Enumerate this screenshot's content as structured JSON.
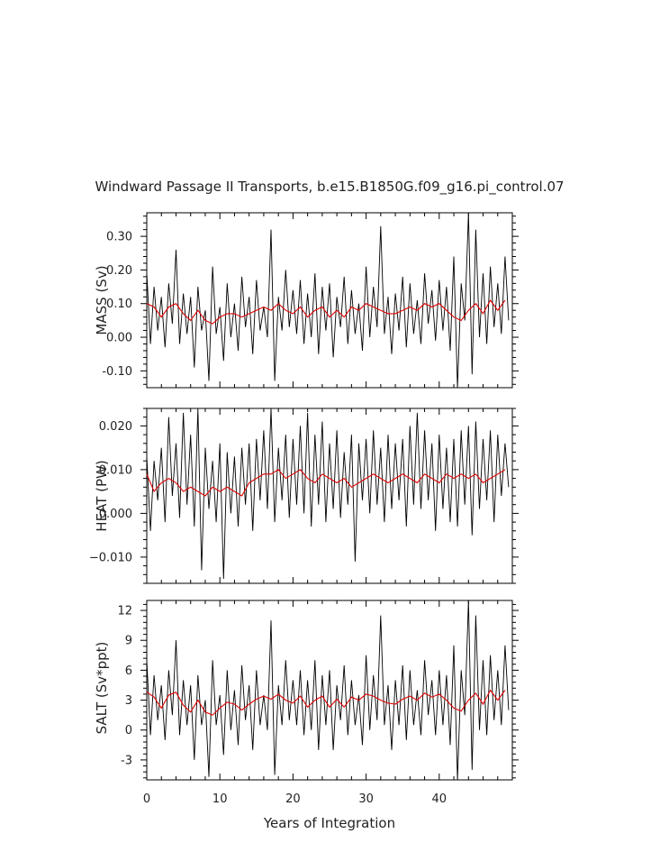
{
  "chart_data": {
    "type": "line",
    "title": "Windward Passage II Transports, b.e15.B1850G.f09_g16.pi_control.07",
    "xlabel": "Years of Integration",
    "xlim": [
      0,
      50
    ],
    "x_ticks": [
      "0",
      "10",
      "20",
      "30",
      "40"
    ],
    "colors": {
      "raw": "#000000",
      "smoothed": "#e00000"
    },
    "panels": [
      {
        "ylabel": "MASS (Sv)",
        "ylim": [
          -0.15,
          0.37
        ],
        "y_ticks": [
          "0.30",
          "0.20",
          "0.10",
          "0.00",
          "-0.10"
        ],
        "y_tick_values": [
          0.3,
          0.2,
          0.1,
          0.0,
          -0.1
        ],
        "raw_series": {
          "years": [
            0,
            0.5,
            1,
            1.5,
            2,
            2.5,
            3,
            3.5,
            4,
            4.5,
            5,
            5.5,
            6,
            6.5,
            7,
            7.5,
            8,
            8.5,
            9,
            9.5,
            10,
            10.5,
            11,
            11.5,
            12,
            12.5,
            13,
            13.5,
            14,
            14.5,
            15,
            15.5,
            16,
            16.5,
            17,
            17.5,
            18,
            18.5,
            19,
            19.5,
            20,
            20.5,
            21,
            21.5,
            22,
            22.5,
            23,
            23.5,
            24,
            24.5,
            25,
            25.5,
            26,
            26.5,
            27,
            27.5,
            28,
            28.5,
            29,
            29.5,
            30,
            30.5,
            31,
            31.5,
            32,
            32.5,
            33,
            33.5,
            34,
            34.5,
            35,
            35.5,
            36,
            36.5,
            37,
            37.5,
            38,
            38.5,
            39,
            39.5,
            40,
            40.5,
            41,
            41.5,
            42,
            42.5,
            43,
            43.5,
            44,
            44.5,
            45,
            45.5,
            46,
            46.5,
            47,
            47.5,
            48,
            48.5,
            49,
            49.5
          ],
          "values": [
            0.19,
            -0.02,
            0.15,
            0.02,
            0.12,
            -0.03,
            0.16,
            0.04,
            0.26,
            -0.02,
            0.13,
            0.01,
            0.12,
            -0.09,
            0.15,
            0.02,
            0.08,
            -0.13,
            0.21,
            0.01,
            0.09,
            -0.07,
            0.16,
            0.0,
            0.1,
            -0.04,
            0.18,
            0.03,
            0.12,
            -0.05,
            0.17,
            0.02,
            0.09,
            0.0,
            0.32,
            -0.13,
            0.12,
            0.02,
            0.2,
            0.03,
            0.14,
            0.01,
            0.17,
            -0.02,
            0.13,
            0.0,
            0.19,
            -0.05,
            0.15,
            0.02,
            0.16,
            -0.06,
            0.12,
            0.03,
            0.18,
            -0.02,
            0.14,
            0.01,
            0.1,
            -0.04,
            0.21,
            0.0,
            0.15,
            0.03,
            0.33,
            0.01,
            0.12,
            -0.05,
            0.13,
            0.02,
            0.18,
            -0.03,
            0.16,
            0.01,
            0.11,
            -0.02,
            0.19,
            0.04,
            0.14,
            -0.01,
            0.17,
            0.02,
            0.15,
            -0.04,
            0.24,
            -0.15,
            0.16,
            0.05,
            0.37,
            -0.11,
            0.32,
            0.0,
            0.19,
            -0.02,
            0.21,
            0.03,
            0.16,
            0.01,
            0.24,
            0.05
          ]
        },
        "smoothed_series": {
          "years": [
            0,
            1,
            2,
            3,
            4,
            5,
            6,
            7,
            8,
            9,
            10,
            11,
            12,
            13,
            14,
            15,
            16,
            17,
            18,
            19,
            20,
            21,
            22,
            23,
            24,
            25,
            26,
            27,
            28,
            29,
            30,
            31,
            32,
            33,
            34,
            35,
            36,
            37,
            38,
            39,
            40,
            41,
            42,
            43,
            44,
            45,
            46,
            47,
            48,
            49
          ],
          "values": [
            0.1,
            0.09,
            0.06,
            0.09,
            0.1,
            0.07,
            0.05,
            0.08,
            0.05,
            0.04,
            0.06,
            0.07,
            0.07,
            0.06,
            0.07,
            0.08,
            0.09,
            0.08,
            0.1,
            0.08,
            0.07,
            0.09,
            0.06,
            0.08,
            0.09,
            0.06,
            0.08,
            0.06,
            0.09,
            0.08,
            0.1,
            0.09,
            0.08,
            0.07,
            0.07,
            0.08,
            0.09,
            0.08,
            0.1,
            0.09,
            0.1,
            0.08,
            0.06,
            0.05,
            0.08,
            0.1,
            0.07,
            0.11,
            0.08,
            0.11
          ]
        }
      },
      {
        "ylabel": "HEAT (PW)",
        "ylim": [
          -0.016,
          0.024
        ],
        "y_ticks": [
          "0.020",
          "0.010",
          "0.000",
          "−0.010"
        ],
        "y_tick_values": [
          0.02,
          0.01,
          0.0,
          -0.01
        ],
        "raw_series": {
          "years": [
            0,
            0.5,
            1,
            1.5,
            2,
            2.5,
            3,
            3.5,
            4,
            4.5,
            5,
            5.5,
            6,
            6.5,
            7,
            7.5,
            8,
            8.5,
            9,
            9.5,
            10,
            10.5,
            11,
            11.5,
            12,
            12.5,
            13,
            13.5,
            14,
            14.5,
            15,
            15.5,
            16,
            16.5,
            17,
            17.5,
            18,
            18.5,
            19,
            19.5,
            20,
            20.5,
            21,
            21.5,
            22,
            22.5,
            23,
            23.5,
            24,
            24.5,
            25,
            25.5,
            26,
            26.5,
            27,
            27.5,
            28,
            28.5,
            29,
            29.5,
            30,
            30.5,
            31,
            31.5,
            32,
            32.5,
            33,
            33.5,
            34,
            34.5,
            35,
            35.5,
            36,
            36.5,
            37,
            37.5,
            38,
            38.5,
            39,
            39.5,
            40,
            40.5,
            41,
            41.5,
            42,
            42.5,
            43,
            43.5,
            44,
            44.5,
            45,
            45.5,
            46,
            46.5,
            47,
            47.5,
            48,
            48.5,
            49,
            49.5
          ],
          "values": [
            0.013,
            -0.004,
            0.012,
            0.003,
            0.015,
            -0.002,
            0.022,
            0.004,
            0.016,
            -0.001,
            0.023,
            0.002,
            0.018,
            -0.003,
            0.024,
            -0.013,
            0.015,
            0.001,
            0.012,
            -0.002,
            0.016,
            -0.015,
            0.014,
            0.0,
            0.013,
            -0.003,
            0.015,
            0.002,
            0.016,
            -0.004,
            0.017,
            0.003,
            0.019,
            0.001,
            0.024,
            -0.002,
            0.015,
            0.003,
            0.018,
            -0.001,
            0.017,
            0.002,
            0.02,
            0.0,
            0.023,
            -0.003,
            0.018,
            0.002,
            0.021,
            -0.002,
            0.016,
            0.001,
            0.019,
            -0.001,
            0.014,
            0.002,
            0.018,
            -0.011,
            0.016,
            0.003,
            0.017,
            0.0,
            0.019,
            0.002,
            0.015,
            -0.002,
            0.018,
            0.001,
            0.016,
            0.003,
            0.017,
            -0.003,
            0.02,
            0.002,
            0.023,
            0.001,
            0.019,
            0.003,
            0.016,
            -0.004,
            0.018,
            0.001,
            0.015,
            -0.002,
            0.017,
            -0.003,
            0.019,
            0.002,
            0.02,
            -0.005,
            0.021,
            0.001,
            0.017,
            0.003,
            0.019,
            -0.002,
            0.018,
            0.004,
            0.016,
            0.006
          ]
        },
        "smoothed_series": {
          "years": [
            0,
            1,
            2,
            3,
            4,
            5,
            6,
            7,
            8,
            9,
            10,
            11,
            12,
            13,
            14,
            15,
            16,
            17,
            18,
            19,
            20,
            21,
            22,
            23,
            24,
            25,
            26,
            27,
            28,
            29,
            30,
            31,
            32,
            33,
            34,
            35,
            36,
            37,
            38,
            39,
            40,
            41,
            42,
            43,
            44,
            45,
            46,
            47,
            48,
            49
          ],
          "values": [
            0.009,
            0.005,
            0.007,
            0.008,
            0.007,
            0.005,
            0.006,
            0.005,
            0.004,
            0.006,
            0.005,
            0.006,
            0.005,
            0.004,
            0.007,
            0.008,
            0.009,
            0.009,
            0.01,
            0.008,
            0.009,
            0.01,
            0.008,
            0.007,
            0.009,
            0.008,
            0.007,
            0.008,
            0.006,
            0.007,
            0.008,
            0.009,
            0.008,
            0.007,
            0.008,
            0.009,
            0.008,
            0.007,
            0.009,
            0.008,
            0.007,
            0.009,
            0.008,
            0.009,
            0.008,
            0.009,
            0.007,
            0.008,
            0.009,
            0.01
          ]
        }
      },
      {
        "ylabel": "SALT (Sv*ppt)",
        "ylim": [
          -5,
          13
        ],
        "y_ticks": [
          "12",
          "9",
          "6",
          "3",
          "0",
          "-3"
        ],
        "y_tick_values": [
          12,
          9,
          6,
          3,
          0,
          -3
        ],
        "raw_series": {
          "years": [
            0,
            0.5,
            1,
            1.5,
            2,
            2.5,
            3,
            3.5,
            4,
            4.5,
            5,
            5.5,
            6,
            6.5,
            7,
            7.5,
            8,
            8.5,
            9,
            9.5,
            10,
            10.5,
            11,
            11.5,
            12,
            12.5,
            13,
            13.5,
            14,
            14.5,
            15,
            15.5,
            16,
            16.5,
            17,
            17.5,
            18,
            18.5,
            19,
            19.5,
            20,
            20.5,
            21,
            21.5,
            22,
            22.5,
            23,
            23.5,
            24,
            24.5,
            25,
            25.5,
            26,
            26.5,
            27,
            27.5,
            28,
            28.5,
            29,
            29.5,
            30,
            30.5,
            31,
            31.5,
            32,
            32.5,
            33,
            33.5,
            34,
            34.5,
            35,
            35.5,
            36,
            36.5,
            37,
            37.5,
            38,
            38.5,
            39,
            39.5,
            40,
            40.5,
            41,
            41.5,
            42,
            42.5,
            43,
            43.5,
            44,
            44.5,
            45,
            45.5,
            46,
            46.5,
            47,
            47.5,
            48,
            48.5,
            49,
            49.5
          ],
          "values": [
            7.0,
            -0.5,
            5.5,
            1.0,
            4.5,
            -1.0,
            6.0,
            1.5,
            9.0,
            -0.5,
            5.0,
            0.5,
            4.5,
            -3.0,
            5.5,
            0.5,
            3.0,
            -4.7,
            7.0,
            0.5,
            3.5,
            -2.5,
            6.0,
            0.0,
            4.0,
            -1.5,
            6.5,
            1.0,
            4.5,
            -2.0,
            6.0,
            0.5,
            3.5,
            0.0,
            11.0,
            -4.5,
            4.5,
            0.5,
            7.0,
            1.0,
            5.0,
            0.5,
            6.0,
            -0.5,
            5.0,
            0.0,
            7.0,
            -2.0,
            5.5,
            0.5,
            6.0,
            -2.0,
            4.5,
            1.0,
            6.5,
            -0.5,
            5.0,
            0.5,
            3.5,
            -1.5,
            7.5,
            0.0,
            5.5,
            1.0,
            11.5,
            0.5,
            4.5,
            -2.0,
            5.0,
            0.5,
            6.5,
            -1.0,
            6.0,
            0.5,
            4.0,
            -0.5,
            7.0,
            1.5,
            5.0,
            -0.5,
            6.0,
            0.5,
            5.5,
            -1.5,
            8.5,
            -5.0,
            6.0,
            1.5,
            13.0,
            -4.0,
            11.5,
            0.0,
            7.0,
            -0.5,
            7.5,
            1.0,
            6.0,
            0.5,
            8.5,
            2.0
          ]
        },
        "smoothed_series": {
          "years": [
            0,
            1,
            2,
            3,
            4,
            5,
            6,
            7,
            8,
            9,
            10,
            11,
            12,
            13,
            14,
            15,
            16,
            17,
            18,
            19,
            20,
            21,
            22,
            23,
            24,
            25,
            26,
            27,
            28,
            29,
            30,
            31,
            32,
            33,
            34,
            35,
            36,
            37,
            38,
            39,
            40,
            41,
            42,
            43,
            44,
            45,
            46,
            47,
            48,
            49
          ],
          "values": [
            3.8,
            3.3,
            2.2,
            3.5,
            3.8,
            2.5,
            1.8,
            3.0,
            1.8,
            1.5,
            2.2,
            2.8,
            2.6,
            2.0,
            2.6,
            3.1,
            3.4,
            3.1,
            3.6,
            3.0,
            2.7,
            3.4,
            2.3,
            3.0,
            3.4,
            2.3,
            3.1,
            2.3,
            3.3,
            3.0,
            3.6,
            3.4,
            3.0,
            2.7,
            2.6,
            3.1,
            3.4,
            3.0,
            3.7,
            3.3,
            3.6,
            3.0,
            2.2,
            1.9,
            3.0,
            3.7,
            2.6,
            4.0,
            3.0,
            4.0
          ]
        }
      }
    ]
  }
}
